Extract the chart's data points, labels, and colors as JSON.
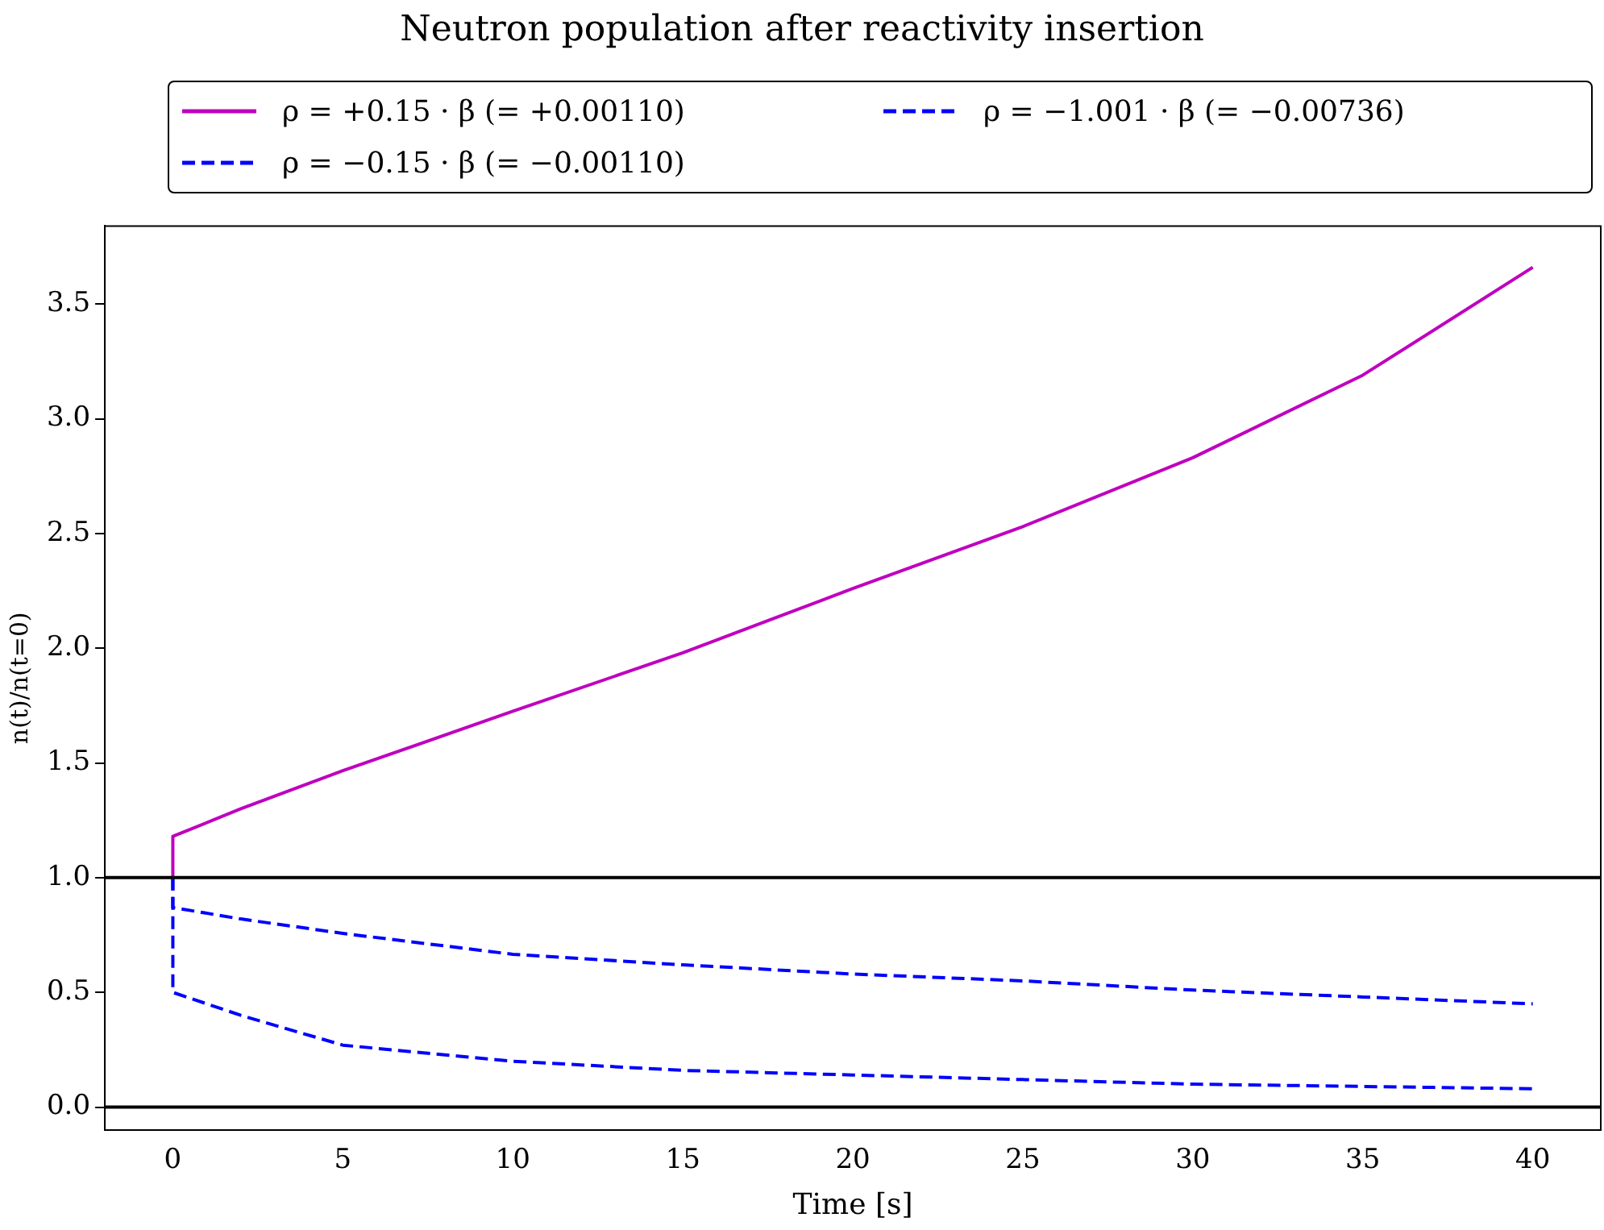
{
  "chart_data": {
    "type": "line",
    "title": "Neutron population after reactivity insertion",
    "xlabel": "Time [s]",
    "ylabel": "n(t)/n(t=0)",
    "xlim": [
      -2,
      42
    ],
    "xticks": [
      0,
      5,
      10,
      15,
      20,
      25,
      30,
      35,
      40
    ],
    "ylim": [
      -0.1,
      3.84
    ],
    "yticks": [
      {
        "value": 0,
        "label": "0.0"
      },
      {
        "value": 0.5,
        "label": "0.5"
      },
      {
        "value": 1,
        "label": "1.0"
      },
      {
        "value": 1.5,
        "label": "1.5"
      },
      {
        "value": 2,
        "label": "2.0"
      },
      {
        "value": 2.5,
        "label": "2.5"
      },
      {
        "value": 3,
        "label": "3.0"
      },
      {
        "value": 3.5,
        "label": "3.5"
      }
    ],
    "grid": false,
    "legend": "top",
    "marker": "none",
    "ref_lines": [
      {
        "axis": "y",
        "value": 0,
        "color": "#000000",
        "line_style": "solid"
      },
      {
        "axis": "y",
        "value": 1,
        "color": "#000000",
        "line_style": "solid"
      }
    ],
    "series": [
      {
        "name": "ρ = +0.15 · β (= +0.00110)",
        "color": "#bf00bf",
        "line_style": "solid",
        "x": [
          0,
          0,
          2,
          5,
          10,
          15,
          20,
          25,
          30,
          35,
          40
        ],
        "values": [
          1,
          1.18,
          1.3,
          1.466,
          1.725,
          1.98,
          2.26,
          2.53,
          2.83,
          3.19,
          3.66
        ]
      },
      {
        "name": "ρ = −0.15 · β (= −0.00110)",
        "color": "#0000ff",
        "line_style": "dashed",
        "x": [
          0,
          0,
          2,
          5,
          10,
          15,
          20,
          25,
          30,
          35,
          40
        ],
        "values": [
          1,
          0.87,
          0.82,
          0.757,
          0.666,
          0.62,
          0.58,
          0.55,
          0.51,
          0.48,
          0.45
        ]
      },
      {
        "name": "ρ = −1.001 · β (= −0.00736)",
        "color": "#0000ff",
        "line_style": "dashed",
        "x": [
          0,
          0,
          1,
          2,
          5,
          10,
          15,
          20,
          25,
          30,
          35,
          40
        ],
        "values": [
          1,
          0.5,
          0.45,
          0.4,
          0.27,
          0.2,
          0.16,
          0.14,
          0.12,
          0.1,
          0.09,
          0.08
        ]
      }
    ]
  }
}
